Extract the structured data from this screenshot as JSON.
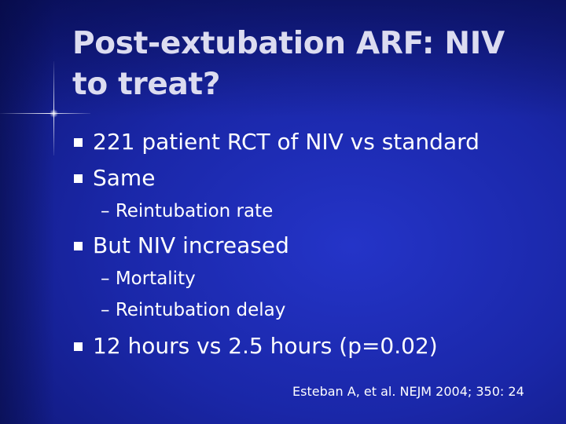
{
  "slide": {
    "title": "Post-extubation ARF: NIV to treat?",
    "bullets": [
      {
        "level": 1,
        "marker": "square-bullet",
        "text": "221 patient RCT of NIV vs standard"
      },
      {
        "level": 1,
        "marker": "square-bullet",
        "text": "Same"
      },
      {
        "level": 2,
        "marker": "–",
        "text": "Reintubation rate"
      },
      {
        "level": 1,
        "marker": "square-bullet",
        "text": "But NIV increased"
      },
      {
        "level": 2,
        "marker": "–",
        "text": "Mortality"
      },
      {
        "level": 2,
        "marker": "–",
        "text": "Reintubation delay"
      },
      {
        "level": 1,
        "marker": "square-bullet",
        "text": "12 hours vs 2.5 hours (p=0.02)"
      }
    ],
    "citation": "Esteban A, et al. NEJM 2004; 350: 24",
    "colors": {
      "background": "#1a27a8",
      "title": "#dcdcf0",
      "text": "#ffffff"
    }
  }
}
